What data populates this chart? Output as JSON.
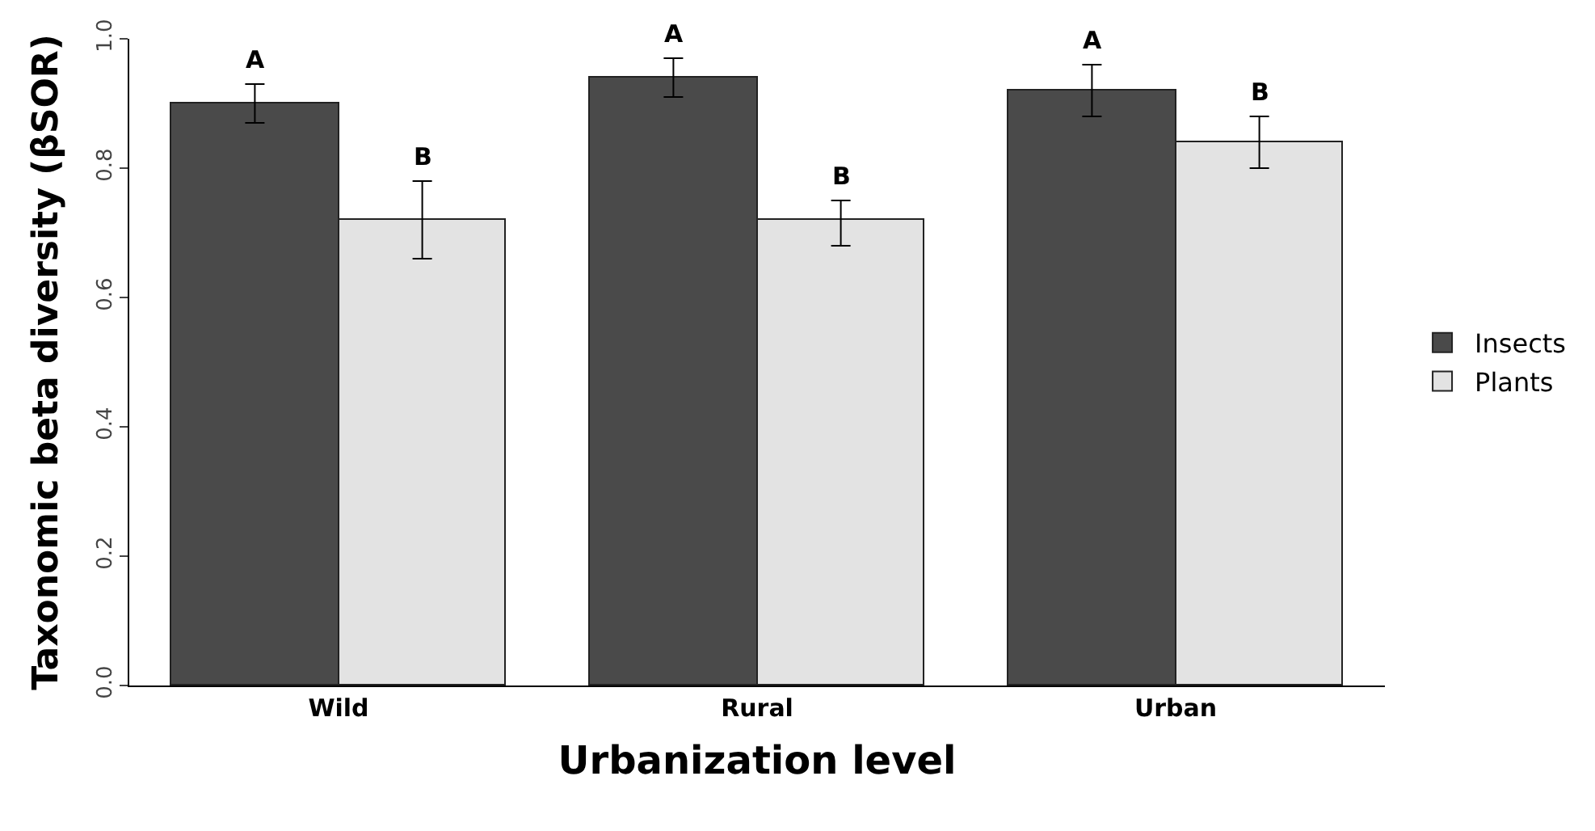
{
  "chart_data": {
    "type": "bar",
    "xlabel": "Urbanization level",
    "ylabel": "Taxonomic beta diversity (βSOR)",
    "categories": [
      "Wild",
      "Rural",
      "Urban"
    ],
    "series": [
      {
        "name": "Insects",
        "color": "#4a4a4a",
        "values": [
          0.9,
          0.94,
          0.92
        ],
        "errors": [
          [
            0.87,
            0.93
          ],
          [
            0.91,
            0.97
          ],
          [
            0.88,
            0.96
          ]
        ]
      },
      {
        "name": "Plants",
        "color": "#e3e3e3",
        "values": [
          0.72,
          0.72,
          0.84
        ],
        "errors": [
          [
            0.66,
            0.78
          ],
          [
            0.68,
            0.75
          ],
          [
            0.8,
            0.88
          ]
        ]
      }
    ],
    "ylim": [
      0,
      1.0
    ],
    "yticks": [
      {
        "value": 0,
        "label": "0.0"
      },
      0.2,
      0.4,
      0.6,
      0.8,
      {
        "value": 1.0,
        "label": "1.0"
      }
    ],
    "legend": "right",
    "annotations": [
      "A",
      "B",
      "A",
      "B",
      "A",
      "B"
    ]
  }
}
